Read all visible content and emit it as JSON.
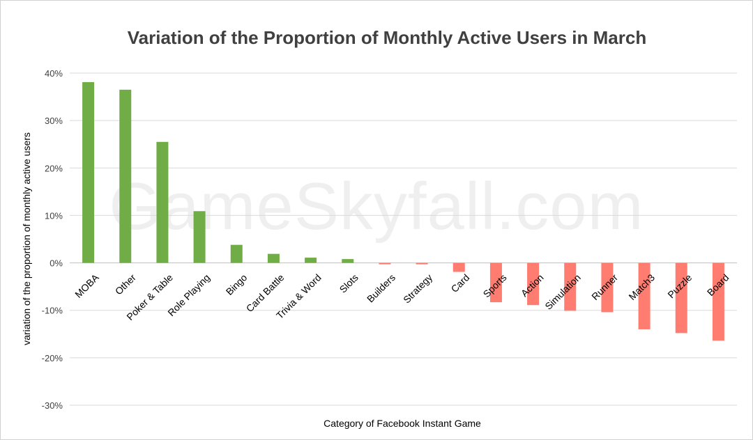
{
  "watermark": "GameSkyfall.com",
  "chart_data": {
    "type": "bar",
    "title": "Variation of the Proportion of Monthly Active Users in March",
    "xlabel": "Category of Facebook Instant Game",
    "ylabel": "variation of the proportion of monthly active users",
    "ylim": [
      -0.3,
      0.4
    ],
    "yticks": [
      {
        "value": 0.4,
        "label": "40%"
      },
      {
        "value": 0.3,
        "label": "30%"
      },
      {
        "value": 0.2,
        "label": "20%"
      },
      {
        "value": 0.1,
        "label": "10%"
      },
      {
        "value": 0.0,
        "label": "0%"
      },
      {
        "value": -0.1,
        "label": "-10%"
      },
      {
        "value": -0.2,
        "label": "-20%"
      },
      {
        "value": -0.3,
        "label": "-30%"
      }
    ],
    "grid": true,
    "legend": "none",
    "colors": {
      "positive": "#70ad47",
      "negative": "#ff7c70"
    },
    "categories": [
      "MOBA",
      "Other",
      "Poker & Table",
      "Role Playing",
      "Bingo",
      "Card Battle",
      "Trivia & Word",
      "Slots",
      "Builders",
      "Strategy",
      "Card",
      "Sports",
      "Action",
      "Simulation",
      "Runner",
      "Match3",
      "Puzzle",
      "Board"
    ],
    "values": [
      0.381,
      0.365,
      0.255,
      0.109,
      0.038,
      0.019,
      0.011,
      0.008,
      -0.003,
      -0.003,
      -0.019,
      -0.083,
      -0.089,
      -0.101,
      -0.104,
      -0.14,
      -0.148,
      -0.164
    ]
  }
}
